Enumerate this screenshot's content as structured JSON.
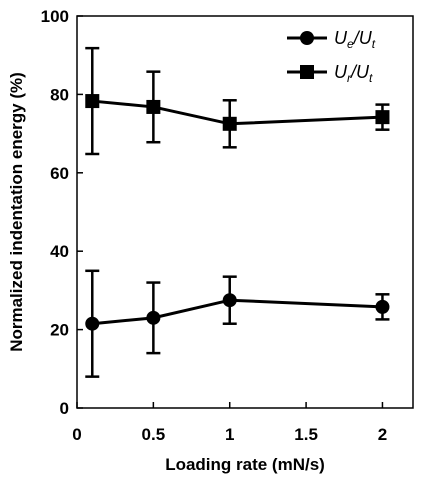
{
  "chart_data": {
    "type": "line",
    "xlabel": "Loading rate (mN/s)",
    "ylabel": "Normalized indentation energy (%)",
    "xlim": [
      0,
      2.2
    ],
    "ylim": [
      0,
      100
    ],
    "xticks": [
      "0",
      "0.5",
      "1",
      "1.5",
      "2"
    ],
    "yticks": [
      "0",
      "20",
      "40",
      "60",
      "80",
      "100"
    ],
    "grid": false,
    "legend_position": "top-right",
    "x": [
      0.1,
      0.5,
      1,
      2
    ],
    "series": [
      {
        "name": "Ue/Ut",
        "legend": {
          "main1": "U",
          "sub1": "e",
          "sep": "/",
          "main2": "U",
          "sub2": "t"
        },
        "marker": "circle",
        "values": [
          21.5,
          23,
          27.5,
          25.8
        ],
        "errors": [
          13.5,
          9,
          6,
          3.2
        ]
      },
      {
        "name": "Ur/Ut",
        "legend": {
          "main1": "U",
          "sub1": "r",
          "sep": "/",
          "main2": "U",
          "sub2": "t"
        },
        "marker": "square",
        "values": [
          78.3,
          76.8,
          72.5,
          74.2
        ],
        "errors": [
          13.5,
          9,
          6,
          3.2
        ]
      }
    ]
  }
}
